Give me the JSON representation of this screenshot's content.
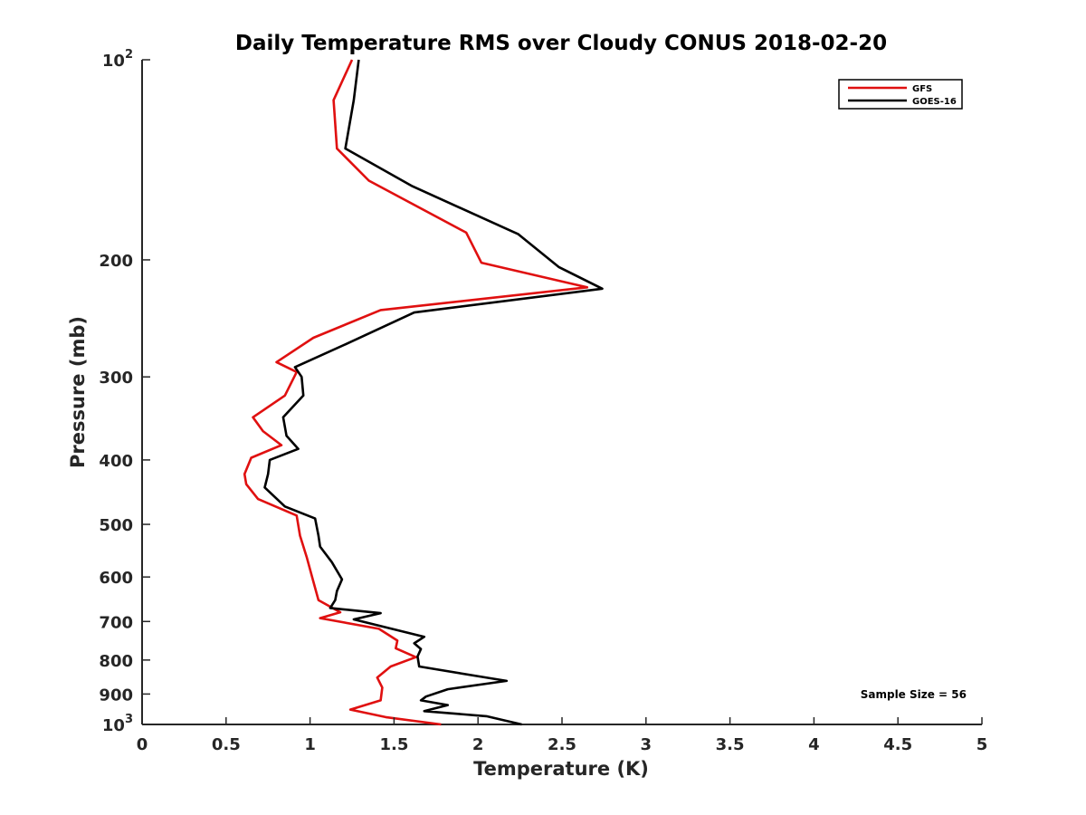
{
  "chart_data": {
    "type": "line",
    "title": "Daily Temperature RMS over Cloudy CONUS 2018-02-20",
    "xlabel": "Temperature (K)",
    "ylabel": "Pressure (mb)",
    "xlim": [
      0,
      5
    ],
    "ylim": [
      100,
      1000
    ],
    "y_scale": "log",
    "y_reversed": true,
    "grid": false,
    "legend_position": "top-right",
    "x_ticks": [
      0,
      0.5,
      1,
      1.5,
      2,
      2.5,
      3,
      3.5,
      4,
      4.5,
      5
    ],
    "x_tick_labels": [
      "0",
      "0.5",
      "1",
      "1.5",
      "2",
      "2.5",
      "3",
      "3.5",
      "4",
      "4.5",
      "5"
    ],
    "y_ticks": [
      100,
      200,
      300,
      400,
      500,
      600,
      700,
      800,
      900,
      1000
    ],
    "y_tick_labels": [
      {
        "base": "10",
        "exp": "2"
      },
      {
        "base": "200",
        "exp": ""
      },
      {
        "base": "300",
        "exp": ""
      },
      {
        "base": "400",
        "exp": ""
      },
      {
        "base": "500",
        "exp": ""
      },
      {
        "base": "600",
        "exp": ""
      },
      {
        "base": "700",
        "exp": ""
      },
      {
        "base": "800",
        "exp": ""
      },
      {
        "base": "900",
        "exp": ""
      },
      {
        "base": "10",
        "exp": "3"
      }
    ],
    "annotation": "Sample Size = 56",
    "series": [
      {
        "name": "GFS",
        "color": "#e01010",
        "points": [
          [
            1.25,
            100
          ],
          [
            1.14,
            115
          ],
          [
            1.16,
            136
          ],
          [
            1.35,
            152
          ],
          [
            1.93,
            182
          ],
          [
            2.02,
            202
          ],
          [
            2.65,
            220
          ],
          [
            1.42,
            238
          ],
          [
            1.02,
            262
          ],
          [
            0.8,
            285
          ],
          [
            0.92,
            295
          ],
          [
            0.85,
            320
          ],
          [
            0.66,
            345
          ],
          [
            0.72,
            362
          ],
          [
            0.83,
            380
          ],
          [
            0.65,
            397
          ],
          [
            0.61,
            420
          ],
          [
            0.62,
            435
          ],
          [
            0.69,
            458
          ],
          [
            0.92,
            485
          ],
          [
            0.94,
            520
          ],
          [
            0.98,
            560
          ],
          [
            1.02,
            610
          ],
          [
            1.05,
            650
          ],
          [
            1.18,
            678
          ],
          [
            1.06,
            692
          ],
          [
            1.41,
            718
          ],
          [
            1.52,
            748
          ],
          [
            1.51,
            768
          ],
          [
            1.63,
            792
          ],
          [
            1.48,
            818
          ],
          [
            1.4,
            850
          ],
          [
            1.43,
            880
          ],
          [
            1.42,
            920
          ],
          [
            1.24,
            950
          ],
          [
            1.45,
            975
          ],
          [
            1.78,
            1000
          ]
        ]
      },
      {
        "name": "GOES-16",
        "color": "#000000",
        "points": [
          [
            1.29,
            100
          ],
          [
            1.26,
            115
          ],
          [
            1.21,
            136
          ],
          [
            1.61,
            155
          ],
          [
            2.24,
            183
          ],
          [
            2.48,
            205
          ],
          [
            2.74,
            221
          ],
          [
            1.62,
            240
          ],
          [
            1.21,
            268
          ],
          [
            0.91,
            290
          ],
          [
            0.95,
            300
          ],
          [
            0.96,
            320
          ],
          [
            0.84,
            345
          ],
          [
            0.86,
            368
          ],
          [
            0.93,
            385
          ],
          [
            0.76,
            400
          ],
          [
            0.75,
            420
          ],
          [
            0.73,
            440
          ],
          [
            0.85,
            470
          ],
          [
            1.03,
            490
          ],
          [
            1.05,
            520
          ],
          [
            1.06,
            540
          ],
          [
            1.13,
            570
          ],
          [
            1.19,
            605
          ],
          [
            1.16,
            630
          ],
          [
            1.15,
            650
          ],
          [
            1.12,
            668
          ],
          [
            1.42,
            680
          ],
          [
            1.26,
            695
          ],
          [
            1.68,
            738
          ],
          [
            1.62,
            755
          ],
          [
            1.66,
            770
          ],
          [
            1.64,
            790
          ],
          [
            1.65,
            818
          ],
          [
            2.07,
            852
          ],
          [
            2.17,
            860
          ],
          [
            1.82,
            885
          ],
          [
            1.69,
            908
          ],
          [
            1.66,
            920
          ],
          [
            1.82,
            935
          ],
          [
            1.68,
            955
          ],
          [
            2.05,
            972
          ],
          [
            2.26,
            1000
          ]
        ]
      }
    ]
  }
}
